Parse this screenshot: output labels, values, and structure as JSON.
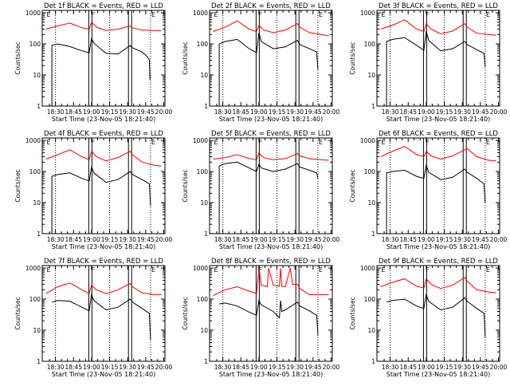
{
  "figure": {
    "xlabel": "Start Time (23-Nov-05 18:21:40)",
    "ylabel": "Counts/sec",
    "x_tick_labels": [
      "18:30",
      "18:45",
      "19:00",
      "19:15",
      "19:30",
      "19:45",
      "20:00"
    ],
    "y_tick_labels": [
      "1",
      "10",
      "100",
      "1000"
    ],
    "colors": {
      "events": "#000000",
      "lld": "#ff0000",
      "axes": "#000000",
      "background": "#ffffff"
    }
  },
  "chart_data": [
    {
      "type": "line",
      "title": "Det 1f BLACK = Events, RED = LLD",
      "x_range_min": [
        -3,
        99
      ],
      "ylim": [
        1,
        1200
      ],
      "yscale": "log",
      "markers": [
        {
          "x": 0,
          "label": "E"
        },
        {
          "x": 37,
          "label": "F"
        },
        {
          "x": 87,
          "label": "E"
        }
      ],
      "bars": [
        37,
        70
      ],
      "dotted_lines": [
        8,
        53,
        87
      ],
      "events": [
        [
          5,
          0
        ],
        [
          5,
          90
        ],
        [
          10,
          100
        ],
        [
          20,
          82
        ],
        [
          30,
          60
        ],
        [
          36,
          52
        ],
        [
          38,
          150
        ],
        [
          40,
          105
        ],
        [
          50,
          50
        ],
        [
          60,
          47
        ],
        [
          70,
          88
        ],
        [
          72,
          75
        ],
        [
          80,
          55
        ],
        [
          84,
          40
        ],
        [
          86,
          30
        ],
        [
          86.5,
          7
        ]
      ],
      "lld": [
        [
          0,
          300
        ],
        [
          10,
          380
        ],
        [
          20,
          470
        ],
        [
          30,
          330
        ],
        [
          36,
          300
        ],
        [
          38,
          500
        ],
        [
          42,
          350
        ],
        [
          50,
          270
        ],
        [
          60,
          300
        ],
        [
          70,
          380
        ],
        [
          72,
          330
        ],
        [
          80,
          280
        ],
        [
          90,
          270
        ],
        [
          96,
          265
        ]
      ]
    },
    {
      "type": "line",
      "title": "Det 2f BLACK = Events, RED = LLD",
      "x_range_min": [
        -3,
        99
      ],
      "ylim": [
        1,
        1200
      ],
      "yscale": "log",
      "markers": [
        {
          "x": 0,
          "label": "E"
        },
        {
          "x": 37,
          "label": "F"
        },
        {
          "x": 87,
          "label": "E"
        }
      ],
      "bars": [
        37,
        70
      ],
      "dotted_lines": [
        8,
        53,
        87
      ],
      "events": [
        [
          5,
          0
        ],
        [
          5,
          100
        ],
        [
          10,
          120
        ],
        [
          20,
          140
        ],
        [
          30,
          70
        ],
        [
          36,
          52
        ],
        [
          38,
          230
        ],
        [
          40,
          120
        ],
        [
          50,
          70
        ],
        [
          60,
          80
        ],
        [
          70,
          130
        ],
        [
          72,
          95
        ],
        [
          80,
          70
        ],
        [
          86,
          55
        ],
        [
          87,
          15
        ]
      ],
      "lld": [
        [
          0,
          250
        ],
        [
          10,
          350
        ],
        [
          20,
          550
        ],
        [
          30,
          300
        ],
        [
          36,
          250
        ],
        [
          38,
          400
        ],
        [
          42,
          280
        ],
        [
          50,
          230
        ],
        [
          60,
          280
        ],
        [
          70,
          450
        ],
        [
          72,
          350
        ],
        [
          80,
          230
        ],
        [
          90,
          200
        ],
        [
          96,
          180
        ]
      ]
    },
    {
      "type": "line",
      "title": "Det 3f BLACK = Events, RED = LLD",
      "x_range_min": [
        -3,
        99
      ],
      "ylim": [
        1,
        1200
      ],
      "yscale": "log",
      "markers": [
        {
          "x": 0,
          "label": "E"
        },
        {
          "x": 37,
          "label": "F"
        },
        {
          "x": 87,
          "label": "E"
        }
      ],
      "bars": [
        37,
        70
      ],
      "dotted_lines": [
        8,
        53,
        87
      ],
      "events": [
        [
          5,
          0
        ],
        [
          5,
          120
        ],
        [
          10,
          140
        ],
        [
          20,
          160
        ],
        [
          30,
          90
        ],
        [
          36,
          62
        ],
        [
          38,
          260
        ],
        [
          40,
          130
        ],
        [
          50,
          60
        ],
        [
          60,
          70
        ],
        [
          70,
          120
        ],
        [
          72,
          95
        ],
        [
          80,
          65
        ],
        [
          86,
          50
        ],
        [
          87,
          18
        ]
      ],
      "lld": [
        [
          0,
          300
        ],
        [
          10,
          400
        ],
        [
          20,
          600
        ],
        [
          30,
          300
        ],
        [
          36,
          250
        ],
        [
          38,
          450
        ],
        [
          42,
          300
        ],
        [
          50,
          210
        ],
        [
          60,
          260
        ],
        [
          70,
          450
        ],
        [
          72,
          350
        ],
        [
          80,
          220
        ],
        [
          90,
          200
        ],
        [
          96,
          190
        ]
      ]
    },
    {
      "type": "line",
      "title": "Det 4f BLACK = Events, RED = LLD",
      "x_range_min": [
        -3,
        99
      ],
      "ylim": [
        1,
        1200
      ],
      "yscale": "log",
      "markers": [
        {
          "x": 0,
          "label": "E"
        },
        {
          "x": 37,
          "label": "F"
        },
        {
          "x": 87,
          "label": "E"
        }
      ],
      "bars": [
        37,
        70
      ],
      "dotted_lines": [
        8,
        53,
        87
      ],
      "events": [
        [
          5,
          0
        ],
        [
          5,
          70
        ],
        [
          10,
          80
        ],
        [
          20,
          90
        ],
        [
          30,
          60
        ],
        [
          36,
          50
        ],
        [
          38,
          140
        ],
        [
          40,
          90
        ],
        [
          50,
          45
        ],
        [
          60,
          55
        ],
        [
          70,
          100
        ],
        [
          72,
          80
        ],
        [
          80,
          55
        ],
        [
          86,
          40
        ],
        [
          87,
          8
        ]
      ],
      "lld": [
        [
          0,
          250
        ],
        [
          10,
          350
        ],
        [
          20,
          500
        ],
        [
          30,
          300
        ],
        [
          36,
          240
        ],
        [
          38,
          450
        ],
        [
          42,
          300
        ],
        [
          50,
          220
        ],
        [
          60,
          280
        ],
        [
          70,
          450
        ],
        [
          72,
          350
        ],
        [
          80,
          200
        ],
        [
          90,
          160
        ],
        [
          96,
          150
        ]
      ]
    },
    {
      "type": "line",
      "title": "Det 5f BLACK = Events, RED = LLD",
      "x_range_min": [
        -3,
        99
      ],
      "ylim": [
        1,
        1200
      ],
      "yscale": "log",
      "markers": [
        {
          "x": 0,
          "label": "E"
        },
        {
          "x": 37,
          "label": "F"
        },
        {
          "x": 87,
          "label": "E"
        }
      ],
      "bars": [
        37,
        70
      ],
      "dotted_lines": [
        8,
        53,
        87
      ],
      "events": [
        [
          5,
          0
        ],
        [
          5,
          150
        ],
        [
          10,
          180
        ],
        [
          20,
          200
        ],
        [
          30,
          130
        ],
        [
          36,
          100
        ],
        [
          38,
          170
        ],
        [
          40,
          130
        ],
        [
          50,
          100
        ],
        [
          60,
          120
        ],
        [
          70,
          180
        ],
        [
          72,
          140
        ],
        [
          80,
          110
        ],
        [
          86,
          90
        ],
        [
          87,
          60
        ]
      ],
      "lld": [
        [
          0,
          250
        ],
        [
          10,
          280
        ],
        [
          20,
          350
        ],
        [
          30,
          260
        ],
        [
          36,
          240
        ],
        [
          38,
          400
        ],
        [
          42,
          280
        ],
        [
          50,
          240
        ],
        [
          60,
          260
        ],
        [
          70,
          380
        ],
        [
          72,
          320
        ],
        [
          80,
          260
        ],
        [
          90,
          240
        ],
        [
          96,
          230
        ]
      ]
    },
    {
      "type": "line",
      "title": "Det 6f BLACK = Events, RED = LLD",
      "x_range_min": [
        -3,
        99
      ],
      "ylim": [
        1,
        1200
      ],
      "yscale": "log",
      "markers": [
        {
          "x": 0,
          "label": "E"
        },
        {
          "x": 37,
          "label": "F"
        },
        {
          "x": 87,
          "label": "E"
        }
      ],
      "bars": [
        37,
        70
      ],
      "dotted_lines": [
        8,
        53,
        87
      ],
      "events": [
        [
          5,
          0
        ],
        [
          5,
          90
        ],
        [
          10,
          100
        ],
        [
          20,
          110
        ],
        [
          30,
          70
        ],
        [
          36,
          60
        ],
        [
          38,
          160
        ],
        [
          40,
          95
        ],
        [
          50,
          55
        ],
        [
          60,
          65
        ],
        [
          70,
          120
        ],
        [
          72,
          95
        ],
        [
          80,
          60
        ],
        [
          86,
          40
        ],
        [
          87,
          10
        ]
      ],
      "lld": [
        [
          0,
          300
        ],
        [
          10,
          450
        ],
        [
          20,
          650
        ],
        [
          30,
          350
        ],
        [
          36,
          300
        ],
        [
          38,
          450
        ],
        [
          42,
          320
        ],
        [
          50,
          250
        ],
        [
          60,
          320
        ],
        [
          70,
          500
        ],
        [
          72,
          550
        ],
        [
          80,
          300
        ],
        [
          90,
          230
        ],
        [
          96,
          220
        ]
      ]
    },
    {
      "type": "line",
      "title": "Det 7f BLACK = Events, RED = LLD",
      "x_range_min": [
        -3,
        99
      ],
      "ylim": [
        1,
        1200
      ],
      "yscale": "log",
      "markers": [
        {
          "x": 0,
          "label": "E"
        },
        {
          "x": 37,
          "label": "F"
        },
        {
          "x": 87,
          "label": "E"
        }
      ],
      "bars": [
        37,
        70
      ],
      "dotted_lines": [
        8,
        53,
        87
      ],
      "events": [
        [
          5,
          80
        ],
        [
          10,
          90
        ],
        [
          20,
          85
        ],
        [
          30,
          55
        ],
        [
          36,
          42
        ],
        [
          38,
          140
        ],
        [
          40,
          90
        ],
        [
          50,
          45
        ],
        [
          60,
          55
        ],
        [
          70,
          100
        ],
        [
          72,
          80
        ],
        [
          80,
          50
        ],
        [
          86,
          35
        ],
        [
          87,
          5
        ]
      ],
      "lld": [
        [
          0,
          150
        ],
        [
          10,
          250
        ],
        [
          20,
          330
        ],
        [
          30,
          200
        ],
        [
          36,
          150
        ],
        [
          38,
          280
        ],
        [
          42,
          200
        ],
        [
          50,
          150
        ],
        [
          60,
          200
        ],
        [
          70,
          320
        ],
        [
          72,
          250
        ],
        [
          80,
          160
        ],
        [
          90,
          140
        ],
        [
          96,
          140
        ]
      ]
    },
    {
      "type": "line",
      "title": "Det 8f BLACK = Events, RED = LLD",
      "x_range_min": [
        -3,
        99
      ],
      "ylim": [
        1,
        1200
      ],
      "yscale": "log",
      "markers": [
        {
          "x": 0,
          "label": "E"
        },
        {
          "x": 37,
          "label": "F"
        },
        {
          "x": 87,
          "label": "E"
        }
      ],
      "bars": [
        37,
        70
      ],
      "dotted_lines": [
        8,
        53,
        87
      ],
      "events": [
        [
          5,
          70
        ],
        [
          10,
          75
        ],
        [
          20,
          60
        ],
        [
          30,
          38
        ],
        [
          36,
          30
        ],
        [
          38,
          90
        ],
        [
          40,
          65
        ],
        [
          50,
          40
        ],
        [
          55,
          25
        ],
        [
          56,
          90
        ],
        [
          57,
          40
        ],
        [
          60,
          45
        ],
        [
          70,
          80
        ],
        [
          72,
          60
        ],
        [
          80,
          42
        ],
        [
          86,
          30
        ],
        [
          87,
          7
        ]
      ],
      "lld": [
        [
          0,
          130
        ],
        [
          10,
          200
        ],
        [
          20,
          250
        ],
        [
          30,
          180
        ],
        [
          36,
          150
        ],
        [
          38,
          1000
        ],
        [
          40,
          280
        ],
        [
          45,
          250
        ],
        [
          46,
          1000
        ],
        [
          50,
          280
        ],
        [
          55,
          260
        ],
        [
          56,
          1000
        ],
        [
          57,
          260
        ],
        [
          60,
          250
        ],
        [
          64,
          1000
        ],
        [
          66,
          300
        ],
        [
          70,
          300
        ],
        [
          72,
          220
        ],
        [
          80,
          140
        ],
        [
          90,
          140
        ],
        [
          96,
          140
        ]
      ]
    },
    {
      "type": "line",
      "title": "Det 9f BLACK = Events, RED = LLD",
      "x_range_min": [
        -3,
        99
      ],
      "ylim": [
        1,
        1200
      ],
      "yscale": "log",
      "markers": [
        {
          "x": 0,
          "label": "E"
        },
        {
          "x": 37,
          "label": "F"
        },
        {
          "x": 87,
          "label": "E"
        }
      ],
      "bars": [
        37,
        70
      ],
      "dotted_lines": [
        8,
        53,
        87
      ],
      "events": [
        [
          5,
          80
        ],
        [
          10,
          90
        ],
        [
          20,
          100
        ],
        [
          30,
          60
        ],
        [
          36,
          50
        ],
        [
          38,
          140
        ],
        [
          40,
          85
        ],
        [
          50,
          45
        ],
        [
          60,
          55
        ],
        [
          70,
          110
        ],
        [
          72,
          85
        ],
        [
          80,
          50
        ],
        [
          86,
          35
        ],
        [
          87,
          6
        ]
      ],
      "lld": [
        [
          0,
          250
        ],
        [
          10,
          350
        ],
        [
          20,
          450
        ],
        [
          30,
          260
        ],
        [
          36,
          230
        ],
        [
          38,
          450
        ],
        [
          42,
          300
        ],
        [
          50,
          220
        ],
        [
          60,
          280
        ],
        [
          70,
          500
        ],
        [
          72,
          380
        ],
        [
          80,
          200
        ],
        [
          90,
          170
        ],
        [
          96,
          160
        ]
      ]
    }
  ]
}
